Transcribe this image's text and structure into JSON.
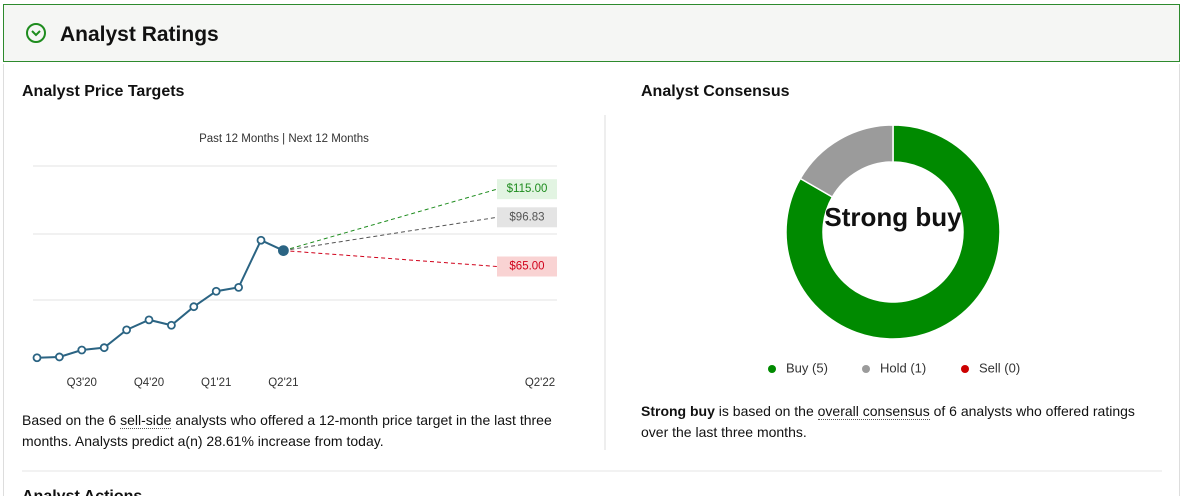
{
  "header": {
    "title": "Analyst Ratings"
  },
  "chart_data": [
    {
      "type": "line",
      "title": "Analyst Price Targets",
      "subtitle": "Past 12 Months | Next 12 Months",
      "categories": [
        null,
        null,
        "Q3'20",
        null,
        null,
        "Q4'20",
        null,
        null,
        "Q1'21",
        null,
        null,
        "Q2'21"
      ],
      "series": [
        {
          "color": "#2b6483",
          "values": [
            6,
            6.5,
            11,
            12.5,
            24,
            30.5,
            27,
            39,
            49,
            51.5,
            82,
            75.29
          ]
        }
      ],
      "targets": {
        "category": "Q2'22",
        "values": [
          115,
          96.83,
          65
        ],
        "value_labels": [
          "$115.00",
          "$96.83",
          "$65.00"
        ],
        "colors": [
          "#1e8c1e",
          "#555555",
          "#d0021b"
        ],
        "label_backgrounds": [
          "#e2f4e2",
          "#e4e4e4",
          "#f9d3d3"
        ]
      },
      "ylim": [
        0,
        130
      ],
      "grid": true
    },
    {
      "type": "pie",
      "title": "Analyst Consensus",
      "center_label": "Strong buy",
      "categories": [
        "Buy (5)",
        "Hold (1)",
        "Sell (0)"
      ],
      "values": [
        5,
        1,
        0
      ],
      "colors": [
        "#008a00",
        "#9b9b9b",
        "#cc0000"
      ]
    }
  ],
  "targets_text": {
    "before": "Based on the 6 ",
    "link": "sell-side",
    "after": " analysts who offered a 12-month price target in the last three months. Analysts predict a(n) 28.61% increase from today."
  },
  "consensus_text": {
    "bold": "Strong buy",
    "before": " is based on the ",
    "link": "overall consensus",
    "after": " of 6 analysts who offered ratings over the last three months."
  },
  "next_section": "Analyst Actions"
}
